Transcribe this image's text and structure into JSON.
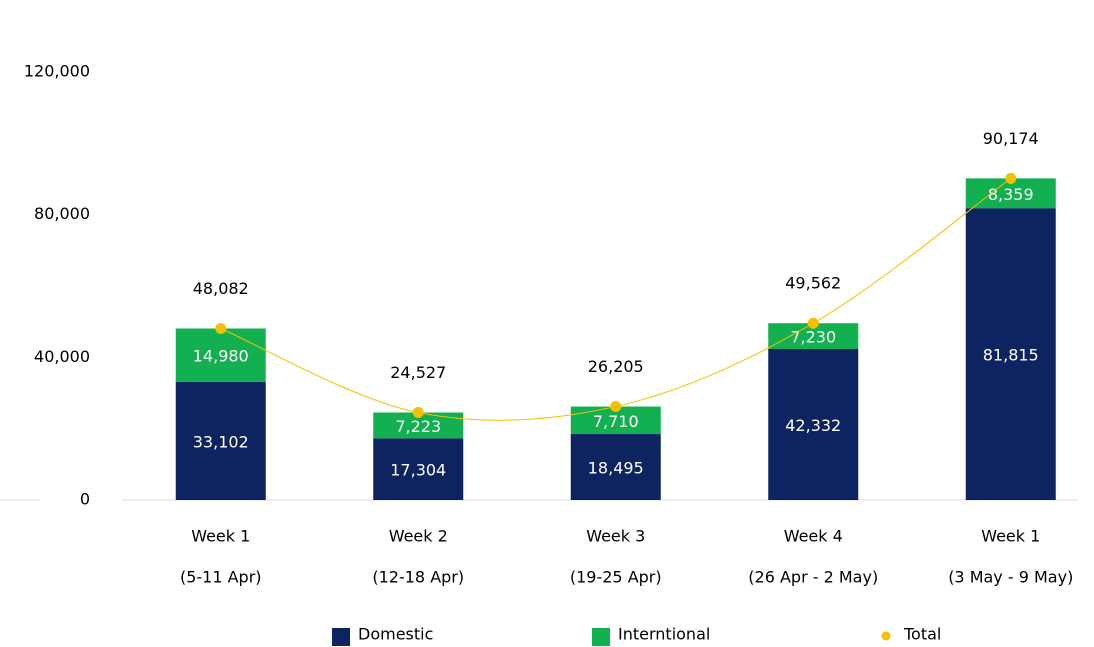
{
  "chart_data": {
    "type": "bar",
    "stacked": true,
    "categories": [
      [
        "Week 1",
        "(5-11 Apr)"
      ],
      [
        "Week 2",
        "(12-18 Apr)"
      ],
      [
        "Week 3",
        "(19-25 Apr)"
      ],
      [
        "Week 4",
        "(26 Apr - 2 May)"
      ],
      [
        "Week 1",
        "(3 May - 9 May)"
      ]
    ],
    "series": [
      {
        "name": "Domestic",
        "color": "#0d2461",
        "values": [
          33102,
          17304,
          18495,
          42332,
          81815
        ],
        "value_labels": [
          "33,102",
          "17,304",
          "18,495",
          "42,332",
          "81,815"
        ]
      },
      {
        "name": "Interntional",
        "color": "#12b050",
        "values": [
          14980,
          7223,
          7710,
          7230,
          8359
        ],
        "value_labels": [
          "14,980",
          "7,223",
          "7,710",
          "7,230",
          "8,359"
        ]
      },
      {
        "name": "Total",
        "type": "line",
        "color": "#f5c000",
        "values": [
          48082,
          24527,
          26205,
          49562,
          90174
        ],
        "value_labels": [
          "48,082",
          "24,527",
          "26,205",
          "49,562",
          "90,174"
        ]
      }
    ],
    "ylim": [
      0,
      120000
    ],
    "yticks": [
      {
        "value": 0,
        "label": "0"
      },
      {
        "value": 40000,
        "label": "40,000"
      },
      {
        "value": 80000,
        "label": "80,000"
      },
      {
        "value": 120000,
        "label": "120,000"
      }
    ]
  }
}
